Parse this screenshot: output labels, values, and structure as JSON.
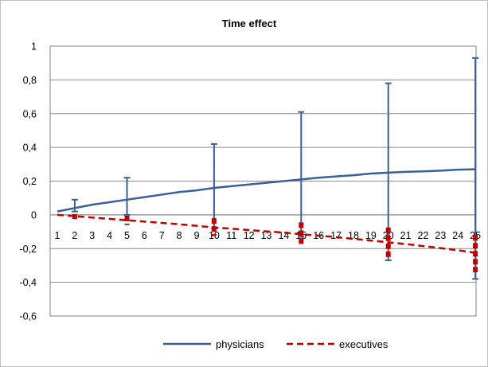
{
  "chart_data": {
    "type": "line",
    "title": "Time effect",
    "xlabel": "",
    "ylabel": "",
    "ylim": [
      -0.6,
      1
    ],
    "y_ticks": [
      "1",
      "0,8",
      "0,6",
      "0,4",
      "0,2",
      "0",
      "-0,2",
      "-0,4",
      "-0,6"
    ],
    "y_tick_values": [
      1,
      0.8,
      0.6,
      0.4,
      0.2,
      0,
      -0.2,
      -0.4,
      -0.6
    ],
    "x": [
      1,
      2,
      3,
      4,
      5,
      6,
      7,
      8,
      9,
      10,
      11,
      12,
      13,
      14,
      15,
      16,
      17,
      18,
      19,
      20,
      21,
      22,
      23,
      24,
      25
    ],
    "x_labels": [
      "1",
      "2",
      "3",
      "4",
      "5",
      "6",
      "7",
      "8",
      "9",
      "10",
      "11",
      "12",
      "13",
      "14",
      "15",
      "16",
      "17",
      "18",
      "19",
      "20",
      "21",
      "22",
      "23",
      "24",
      "25"
    ],
    "grid": "horizontal",
    "legend_position": "bottom",
    "series": [
      {
        "name": "physicians",
        "color": "#3a5f9a",
        "style": "solid",
        "values": [
          0.02,
          0.04,
          0.06,
          0.075,
          0.09,
          0.105,
          0.12,
          0.135,
          0.145,
          0.16,
          0.17,
          0.18,
          0.19,
          0.2,
          0.21,
          0.22,
          0.228,
          0.235,
          0.245,
          0.25,
          0.255,
          0.258,
          0.262,
          0.268,
          0.27
        ],
        "error_bars": [
          {
            "x": 2,
            "low": 0.02,
            "high": 0.09
          },
          {
            "x": 5,
            "low": 0.0,
            "high": 0.22
          },
          {
            "x": 10,
            "low": -0.08,
            "high": 0.42
          },
          {
            "x": 15,
            "low": -0.13,
            "high": 0.61
          },
          {
            "x": 20,
            "low": -0.27,
            "high": 0.78
          },
          {
            "x": 25,
            "low": -0.38,
            "high": 0.93
          }
        ]
      },
      {
        "name": "executives",
        "color": "#c00000",
        "style": "dashed",
        "values": [
          0.0,
          -0.008,
          -0.016,
          -0.024,
          -0.032,
          -0.04,
          -0.048,
          -0.056,
          -0.065,
          -0.075,
          -0.082,
          -0.09,
          -0.098,
          -0.105,
          -0.115,
          -0.123,
          -0.132,
          -0.142,
          -0.152,
          -0.163,
          -0.173,
          -0.185,
          -0.197,
          -0.21,
          -0.225
        ],
        "error_bars": [
          {
            "x": 2,
            "low": -0.025,
            "high": 0.005
          },
          {
            "x": 5,
            "low": -0.06,
            "high": -0.005
          },
          {
            "x": 10,
            "low": -0.125,
            "high": -0.02
          },
          {
            "x": 15,
            "low": -0.185,
            "high": -0.045
          },
          {
            "x": 20,
            "low": -0.26,
            "high": -0.075
          },
          {
            "x": 25,
            "low": -0.34,
            "high": -0.12
          }
        ]
      }
    ]
  }
}
